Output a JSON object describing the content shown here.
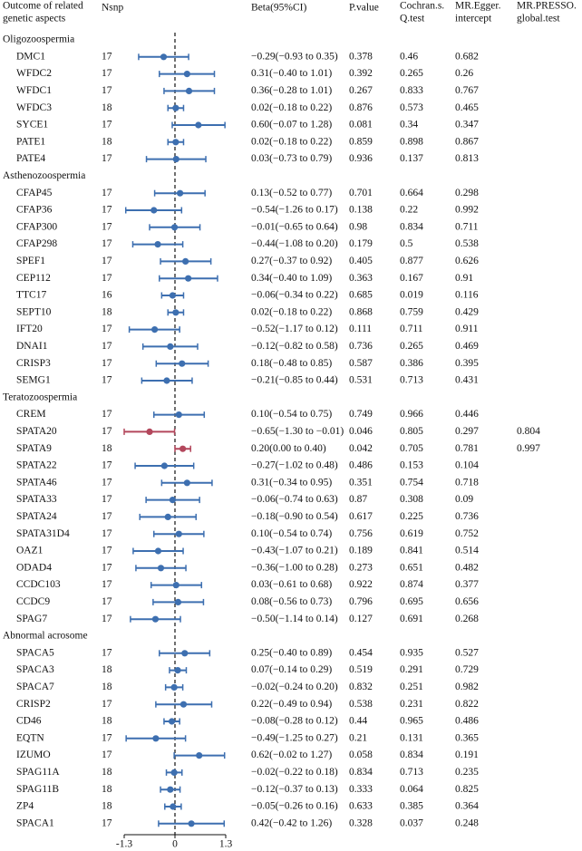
{
  "chart_data": {
    "type": "forest",
    "headers": {
      "outcome": [
        "Outcome of related",
        "genetic aspects"
      ],
      "nsnp": [
        "Nsnp"
      ],
      "ci": [
        "Beta(95%CI)"
      ],
      "p": [
        "P.value"
      ],
      "q": [
        "Cochran.s.",
        "Q.test"
      ],
      "egger": [
        "MR.Egger.",
        "intercept"
      ],
      "presso": [
        "MR.PRESSO.",
        "global.test"
      ]
    },
    "xlim": [
      -1.3,
      1.3
    ],
    "xticks": [
      -1.3,
      0,
      1.3
    ],
    "color": "#3d6fb0",
    "groups": [
      {
        "name": "Oligozoospermia",
        "rows": [
          {
            "name": "DMC1",
            "nsnp": 17,
            "beta": -0.29,
            "lower": -0.93,
            "upper": 0.35,
            "ci": "−0.29(−0.93 to 0.35)",
            "p": 0.378,
            "q": 0.46,
            "egger": 0.682
          },
          {
            "name": "WFDC2",
            "nsnp": 17,
            "beta": 0.31,
            "lower": -0.4,
            "upper": 1.01,
            "ci": "0.31(−0.40 to 1.01)",
            "p": 0.392,
            "q": 0.265,
            "egger": 0.26
          },
          {
            "name": "WFDC1",
            "nsnp": 17,
            "beta": 0.36,
            "lower": -0.28,
            "upper": 1.01,
            "ci": "0.36(−0.28 to 1.01)",
            "p": 0.267,
            "q": 0.833,
            "egger": 0.767
          },
          {
            "name": "WFDC3",
            "nsnp": 18,
            "beta": 0.02,
            "lower": -0.18,
            "upper": 0.22,
            "ci": "0.02(−0.18 to 0.22)",
            "p": 0.876,
            "q": 0.573,
            "egger": 0.465
          },
          {
            "name": "SYCE1",
            "nsnp": 17,
            "beta": 0.6,
            "lower": -0.07,
            "upper": 1.28,
            "ci": "0.60(−0.07 to 1.28)",
            "p": 0.081,
            "q": 0.34,
            "egger": 0.347
          },
          {
            "name": "PATE1",
            "nsnp": 18,
            "beta": 0.02,
            "lower": -0.18,
            "upper": 0.22,
            "ci": "0.02(−0.18 to 0.22)",
            "p": 0.859,
            "q": 0.898,
            "egger": 0.867
          },
          {
            "name": "PATE4",
            "nsnp": 17,
            "beta": 0.03,
            "lower": -0.73,
            "upper": 0.79,
            "ci": "0.03(−0.73 to 0.79)",
            "p": 0.936,
            "q": 0.137,
            "egger": 0.813
          }
        ]
      },
      {
        "name": "Asthenozoospermia",
        "rows": [
          {
            "name": "CFAP45",
            "nsnp": 17,
            "beta": 0.13,
            "lower": -0.52,
            "upper": 0.77,
            "ci": "0.13(−0.52 to 0.77)",
            "p": 0.701,
            "q": 0.664,
            "egger": 0.298
          },
          {
            "name": "CFAP36",
            "nsnp": 17,
            "beta": -0.54,
            "lower": -1.26,
            "upper": 0.17,
            "ci": "−0.54(−1.26 to 0.17)",
            "p": 0.138,
            "q": 0.22,
            "egger": 0.992
          },
          {
            "name": "CFAP300",
            "nsnp": 17,
            "beta": -0.01,
            "lower": -0.65,
            "upper": 0.64,
            "ci": "−0.01(−0.65 to 0.64)",
            "p": 0.98,
            "q": 0.834,
            "egger": 0.711
          },
          {
            "name": "CFAP298",
            "nsnp": 17,
            "beta": -0.44,
            "lower": -1.08,
            "upper": 0.2,
            "ci": "−0.44(−1.08 to 0.20)",
            "p": 0.179,
            "q": 0.5,
            "egger": 0.538
          },
          {
            "name": "SPEF1",
            "nsnp": 17,
            "beta": 0.27,
            "lower": -0.37,
            "upper": 0.92,
            "ci": "0.27(−0.37 to 0.92)",
            "p": 0.405,
            "q": 0.877,
            "egger": 0.626
          },
          {
            "name": "CEP112",
            "nsnp": 17,
            "beta": 0.34,
            "lower": -0.4,
            "upper": 1.09,
            "ci": "0.34(−0.40 to 1.09)",
            "p": 0.363,
            "q": 0.167,
            "egger": 0.91
          },
          {
            "name": "TTC17",
            "nsnp": 16,
            "beta": -0.06,
            "lower": -0.34,
            "upper": 0.22,
            "ci": "−0.06(−0.34 to 0.22)",
            "p": 0.685,
            "q": 0.019,
            "egger": 0.116
          },
          {
            "name": "SEPT10",
            "nsnp": 18,
            "beta": 0.02,
            "lower": -0.18,
            "upper": 0.22,
            "ci": "0.02(−0.18 to 0.22)",
            "p": 0.868,
            "q": 0.759,
            "egger": 0.429
          },
          {
            "name": "IFT20",
            "nsnp": 17,
            "beta": -0.52,
            "lower": -1.17,
            "upper": 0.12,
            "ci": "−0.52(−1.17 to 0.12)",
            "p": 0.111,
            "q": 0.711,
            "egger": 0.911
          },
          {
            "name": "DNAI1",
            "nsnp": 17,
            "beta": -0.12,
            "lower": -0.82,
            "upper": 0.58,
            "ci": "−0.12(−0.82 to 0.58)",
            "p": 0.736,
            "q": 0.265,
            "egger": 0.469
          },
          {
            "name": "CRISP3",
            "nsnp": 17,
            "beta": 0.18,
            "lower": -0.48,
            "upper": 0.85,
            "ci": "0.18(−0.48 to 0.85)",
            "p": 0.587,
            "q": 0.386,
            "egger": 0.395
          },
          {
            "name": "SEMG1",
            "nsnp": 17,
            "beta": -0.21,
            "lower": -0.85,
            "upper": 0.44,
            "ci": "−0.21(−0.85 to 0.44)",
            "p": 0.531,
            "q": 0.713,
            "egger": 0.431
          }
        ]
      },
      {
        "name": "Teratozoospermia",
        "rows": [
          {
            "name": "CREM",
            "nsnp": 17,
            "beta": 0.1,
            "lower": -0.54,
            "upper": 0.75,
            "ci": "0.10(−0.54 to 0.75)",
            "p": 0.749,
            "q": 0.966,
            "egger": 0.446
          },
          {
            "name": "SPATA20",
            "nsnp": 17,
            "beta": -0.65,
            "lower": -1.3,
            "upper": -0.01,
            "ci": "−0.65(−1.30 to −0.01)",
            "p": 0.046,
            "q": 0.805,
            "egger": 0.297,
            "presso": 0.804,
            "color": "#b3475c"
          },
          {
            "name": "SPATA9",
            "nsnp": 18,
            "beta": 0.2,
            "lower": 0.0,
            "upper": 0.4,
            "ci": "0.20(0.00 to 0.40)",
            "p": 0.042,
            "q": 0.705,
            "egger": 0.781,
            "presso": 0.997,
            "color": "#b3475c"
          },
          {
            "name": "SPATA22",
            "nsnp": 17,
            "beta": -0.27,
            "lower": -1.02,
            "upper": 0.48,
            "ci": "−0.27(−1.02 to 0.48)",
            "p": 0.486,
            "q": 0.153,
            "egger": 0.104
          },
          {
            "name": "SPATA46",
            "nsnp": 17,
            "beta": 0.31,
            "lower": -0.34,
            "upper": 0.95,
            "ci": "0.31(−0.34 to 0.95)",
            "p": 0.351,
            "q": 0.754,
            "egger": 0.718
          },
          {
            "name": "SPATA33",
            "nsnp": 17,
            "beta": -0.06,
            "lower": -0.74,
            "upper": 0.63,
            "ci": "−0.06(−0.74 to 0.63)",
            "p": 0.87,
            "q": 0.308,
            "egger": 0.09
          },
          {
            "name": "SPATA24",
            "nsnp": 17,
            "beta": -0.18,
            "lower": -0.9,
            "upper": 0.54,
            "ci": "−0.18(−0.90 to 0.54)",
            "p": 0.617,
            "q": 0.225,
            "egger": 0.736
          },
          {
            "name": "SPATA31D4",
            "nsnp": 17,
            "beta": 0.1,
            "lower": -0.54,
            "upper": 0.74,
            "ci": "0.10(−0.54 to 0.74)",
            "p": 0.756,
            "q": 0.619,
            "egger": 0.752
          },
          {
            "name": "OAZ1",
            "nsnp": 17,
            "beta": -0.43,
            "lower": -1.07,
            "upper": 0.21,
            "ci": "−0.43(−1.07 to 0.21)",
            "p": 0.189,
            "q": 0.841,
            "egger": 0.514
          },
          {
            "name": "ODAD4",
            "nsnp": 17,
            "beta": -0.36,
            "lower": -1.0,
            "upper": 0.28,
            "ci": "−0.36(−1.00 to 0.28)",
            "p": 0.273,
            "q": 0.651,
            "egger": 0.482
          },
          {
            "name": "CCDC103",
            "nsnp": 17,
            "beta": 0.03,
            "lower": -0.61,
            "upper": 0.68,
            "ci": "0.03(−0.61 to 0.68)",
            "p": 0.922,
            "q": 0.874,
            "egger": 0.377
          },
          {
            "name": "CCDC9",
            "nsnp": 17,
            "beta": 0.08,
            "lower": -0.56,
            "upper": 0.73,
            "ci": "0.08(−0.56 to 0.73)",
            "p": 0.796,
            "q": 0.695,
            "egger": 0.656
          },
          {
            "name": "SPAG7",
            "nsnp": 17,
            "beta": -0.5,
            "lower": -1.14,
            "upper": 0.14,
            "ci": "−0.50(−1.14 to 0.14)",
            "p": 0.127,
            "q": 0.691,
            "egger": 0.268
          }
        ]
      },
      {
        "name": "Abnormal acrosome",
        "rows": [
          {
            "name": "SPACA5",
            "nsnp": 17,
            "beta": 0.25,
            "lower": -0.4,
            "upper": 0.89,
            "ci": "0.25(−0.40 to 0.89)",
            "p": 0.454,
            "q": 0.935,
            "egger": 0.527
          },
          {
            "name": "SPACA3",
            "nsnp": 18,
            "beta": 0.07,
            "lower": -0.14,
            "upper": 0.29,
            "ci": "0.07(−0.14 to 0.29)",
            "p": 0.519,
            "q": 0.291,
            "egger": 0.729
          },
          {
            "name": "SPACA7",
            "nsnp": 18,
            "beta": -0.02,
            "lower": -0.24,
            "upper": 0.2,
            "ci": "−0.02(−0.24 to 0.20)",
            "p": 0.832,
            "q": 0.251,
            "egger": 0.982
          },
          {
            "name": "CRISP2",
            "nsnp": 17,
            "beta": 0.22,
            "lower": -0.49,
            "upper": 0.94,
            "ci": "0.22(−0.49 to 0.94)",
            "p": 0.538,
            "q": 0.231,
            "egger": 0.822
          },
          {
            "name": "CD46",
            "nsnp": 18,
            "beta": -0.08,
            "lower": -0.28,
            "upper": 0.12,
            "ci": "−0.08(−0.28 to 0.12)",
            "p": 0.44,
            "q": 0.965,
            "egger": 0.486
          },
          {
            "name": "EQTN",
            "nsnp": 17,
            "beta": -0.49,
            "lower": -1.25,
            "upper": 0.27,
            "ci": "−0.49(−1.25 to 0.27)",
            "p": 0.21,
            "q": 0.131,
            "egger": 0.365
          },
          {
            "name": "IZUMO",
            "nsnp": 17,
            "beta": 0.62,
            "lower": -0.02,
            "upper": 1.27,
            "ci": "0.62(−0.02 to 1.27)",
            "p": 0.058,
            "q": 0.834,
            "egger": 0.191
          },
          {
            "name": "SPAG11A",
            "nsnp": 18,
            "beta": -0.02,
            "lower": -0.22,
            "upper": 0.18,
            "ci": "−0.02(−0.22 to 0.18)",
            "p": 0.834,
            "q": 0.713,
            "egger": 0.235
          },
          {
            "name": "SPAG11B",
            "nsnp": 18,
            "beta": -0.12,
            "lower": -0.37,
            "upper": 0.13,
            "ci": "−0.12(−0.37 to 0.13)",
            "p": 0.333,
            "q": 0.064,
            "egger": 0.825
          },
          {
            "name": "ZP4",
            "nsnp": 18,
            "beta": -0.05,
            "lower": -0.26,
            "upper": 0.16,
            "ci": "−0.05(−0.26 to 0.16)",
            "p": 0.633,
            "q": 0.385,
            "egger": 0.364
          },
          {
            "name": "SPACA1",
            "nsnp": 17,
            "beta": 0.42,
            "lower": -0.42,
            "upper": 1.26,
            "ci": "0.42(−0.42 to 1.26)",
            "p": 0.328,
            "q": 0.037,
            "egger": 0.248
          }
        ]
      }
    ]
  }
}
